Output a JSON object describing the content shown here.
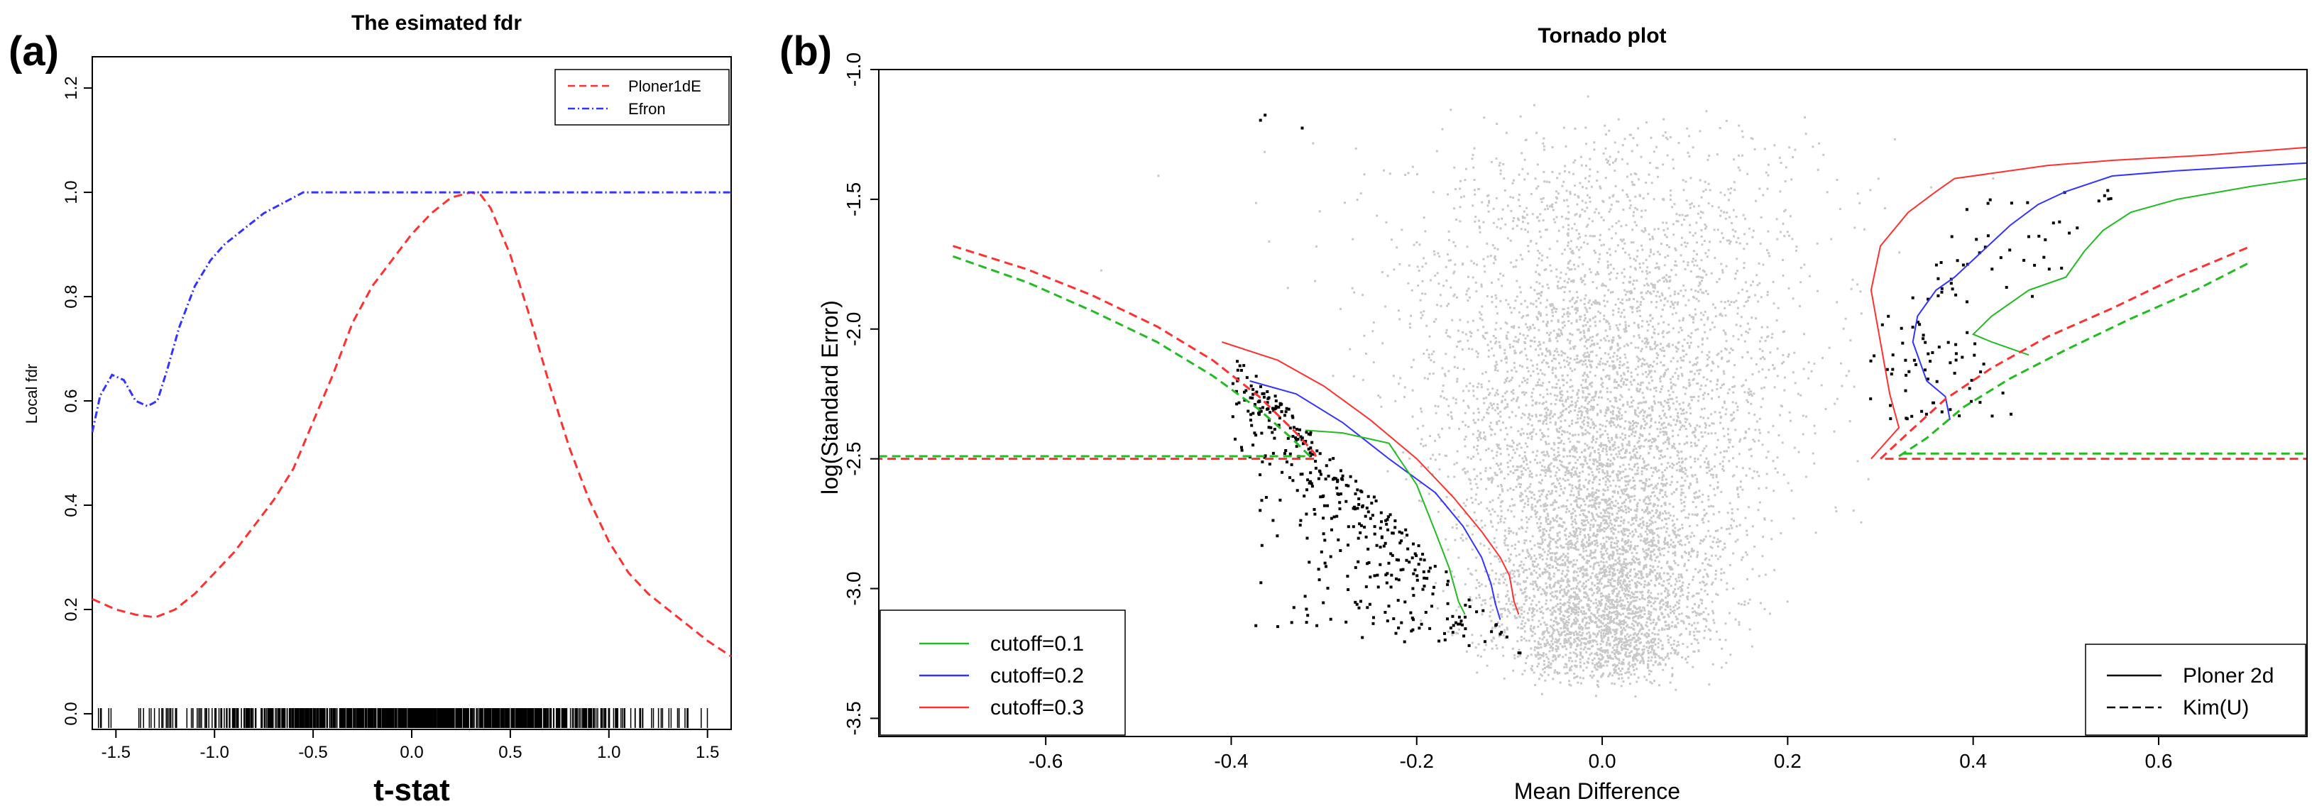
{
  "panels": {
    "a": {
      "label": "(a)"
    },
    "b": {
      "label": "(b)"
    }
  },
  "colors": {
    "ploner": "#ff3030",
    "efron": "#3333ff",
    "green": "#22bb22",
    "blue": "#3333ff",
    "red": "#ff3030",
    "grey_points": "#c8c8c8",
    "black_points": "#000000"
  },
  "chart_data": [
    {
      "type": "line",
      "title": "The esimated fdr",
      "xlabel": "t-stat",
      "ylabel": "Local fdr",
      "xlim": [
        -1.62,
        1.62
      ],
      "ylim": [
        -0.03,
        1.26
      ],
      "xticks": [
        -1.5,
        -1.0,
        -0.5,
        0.0,
        0.5,
        1.0,
        1.5
      ],
      "xtick_labels": [
        "-1.5",
        "-1.0",
        "-0.5",
        "0.0",
        "0.5",
        "1.0",
        "1.5"
      ],
      "yticks": [
        0.0,
        0.2,
        0.4,
        0.6,
        0.8,
        1.0,
        1.2
      ],
      "ytick_labels": [
        "0.0",
        "0.2",
        "0.4",
        "0.6",
        "0.8",
        "1.0",
        "1.2"
      ],
      "legend": {
        "position": "top-right",
        "entries": [
          "Ploner1dE",
          "Efron"
        ]
      },
      "rug": true,
      "series": [
        {
          "name": "Ploner1dE",
          "style": "dashed",
          "x": [
            -1.62,
            -1.5,
            -1.4,
            -1.3,
            -1.2,
            -1.1,
            -1.0,
            -0.9,
            -0.8,
            -0.7,
            -0.6,
            -0.5,
            -0.4,
            -0.3,
            -0.2,
            -0.1,
            0.0,
            0.1,
            0.2,
            0.3,
            0.35,
            0.4,
            0.5,
            0.6,
            0.7,
            0.8,
            0.9,
            1.0,
            1.1,
            1.2,
            1.3,
            1.4,
            1.5,
            1.62
          ],
          "y": [
            0.22,
            0.2,
            0.19,
            0.185,
            0.2,
            0.23,
            0.27,
            0.31,
            0.36,
            0.41,
            0.47,
            0.56,
            0.65,
            0.75,
            0.82,
            0.87,
            0.92,
            0.96,
            0.99,
            1.0,
            0.995,
            0.97,
            0.88,
            0.76,
            0.63,
            0.51,
            0.41,
            0.33,
            0.27,
            0.23,
            0.2,
            0.17,
            0.14,
            0.11
          ]
        },
        {
          "name": "Efron",
          "style": "dotdash",
          "x": [
            -1.62,
            -1.58,
            -1.52,
            -1.46,
            -1.4,
            -1.34,
            -1.29,
            -1.24,
            -1.18,
            -1.1,
            -1.02,
            -0.95,
            -0.85,
            -0.75,
            -0.65,
            -0.55,
            -0.5,
            0.0,
            0.5,
            1.0,
            1.62
          ],
          "y": [
            0.54,
            0.61,
            0.65,
            0.64,
            0.6,
            0.59,
            0.6,
            0.66,
            0.74,
            0.82,
            0.87,
            0.9,
            0.93,
            0.96,
            0.98,
            1.0,
            1.0,
            1.0,
            1.0,
            1.0,
            1.0
          ]
        }
      ]
    },
    {
      "type": "scatter",
      "title": "Tornado plot",
      "xlabel": "Mean Difference",
      "ylabel": "log(Standard Error)",
      "xlim": [
        -0.78,
        0.76
      ],
      "ylim": [
        -3.57,
        -1.0
      ],
      "y_inverted": true,
      "xticks": [
        -0.6,
        -0.4,
        -0.2,
        0.0,
        0.2,
        0.4,
        0.6
      ],
      "xtick_labels": [
        "-0.6",
        "-0.4",
        "-0.2",
        "0.0",
        "0.2",
        "0.4",
        "0.6"
      ],
      "yticks": [
        -1.0,
        -1.5,
        -2.0,
        -2.5,
        -3.0,
        -3.5
      ],
      "ytick_labels": [
        "-1.0",
        "-1.5",
        "-2.0",
        "-2.5",
        "-3.0",
        "-3.5"
      ],
      "legend_cutoff": {
        "position": "bottom-left",
        "entries": [
          "cutoff=0.1",
          "cutoff=0.2",
          "cutoff=0.3"
        ]
      },
      "legend_method": {
        "position": "bottom-right",
        "entries": [
          "Ploner 2d",
          "Kim(U)"
        ]
      },
      "grey_points": {
        "count": 7000,
        "center_x": 0.0,
        "sd_x": 0.09,
        "se_range": [
          -3.3,
          -1.1
        ],
        "description": "all genes"
      },
      "black_points_left": {
        "count": 420,
        "x_range": [
          -0.4,
          -0.09
        ],
        "se_range": [
          -3.25,
          -2.15
        ]
      },
      "black_points_right": {
        "count": 110,
        "x_range": [
          0.25,
          0.56
        ],
        "se_range": [
          -2.35,
          -1.45
        ]
      },
      "extra_black_points": [
        {
          "x": -0.37,
          "y": -1.19
        },
        {
          "x": -0.365,
          "y": -1.17
        },
        {
          "x": -0.325,
          "y": -1.22
        }
      ],
      "series": [
        {
          "name": "Ploner 2d cutoff=0.3 left",
          "method": "Ploner 2d",
          "cutoff": 0.3,
          "style": "solid",
          "x": [
            -0.41,
            -0.35,
            -0.3,
            -0.25,
            -0.2,
            -0.16,
            -0.13,
            -0.11,
            -0.1,
            -0.095,
            -0.09
          ],
          "y": [
            -2.05,
            -2.12,
            -2.22,
            -2.35,
            -2.5,
            -2.65,
            -2.78,
            -2.88,
            -2.95,
            -3.05,
            -3.1
          ]
        },
        {
          "name": "Ploner 2d cutoff=0.2 left",
          "method": "Ploner 2d",
          "cutoff": 0.2,
          "style": "solid",
          "x": [
            -0.38,
            -0.33,
            -0.28,
            -0.23,
            -0.18,
            -0.15,
            -0.13,
            -0.12,
            -0.115,
            -0.11
          ],
          "y": [
            -2.2,
            -2.25,
            -2.36,
            -2.5,
            -2.63,
            -2.76,
            -2.88,
            -2.98,
            -3.06,
            -3.12
          ]
        },
        {
          "name": "Ploner 2d cutoff=0.1 left",
          "method": "Ploner 2d",
          "cutoff": 0.1,
          "style": "solid",
          "x": [
            -0.32,
            -0.28,
            -0.23,
            -0.2,
            -0.18,
            -0.165,
            -0.155,
            -0.148
          ],
          "y": [
            -2.39,
            -2.4,
            -2.44,
            -2.6,
            -2.78,
            -2.92,
            -3.05,
            -3.1
          ]
        },
        {
          "name": "Ploner 2d cutoff=0.3 right",
          "method": "Ploner 2d",
          "cutoff": 0.3,
          "style": "solid",
          "x": [
            0.29,
            0.32,
            0.31,
            0.3,
            0.29,
            0.3,
            0.33,
            0.36,
            0.38,
            0.42,
            0.48,
            0.55,
            0.65,
            0.76
          ],
          "y": [
            -2.5,
            -2.38,
            -2.25,
            -2.05,
            -1.85,
            -1.68,
            -1.55,
            -1.47,
            -1.42,
            -1.4,
            -1.37,
            -1.35,
            -1.33,
            -1.3
          ]
        },
        {
          "name": "Ploner 2d cutoff=0.2 right",
          "method": "Ploner 2d",
          "cutoff": 0.2,
          "style": "solid",
          "x": [
            0.375,
            0.37,
            0.35,
            0.335,
            0.34,
            0.36,
            0.38,
            0.41,
            0.44,
            0.47,
            0.5,
            0.55,
            0.62,
            0.76
          ],
          "y": [
            -2.35,
            -2.26,
            -2.2,
            -2.05,
            -1.95,
            -1.85,
            -1.8,
            -1.7,
            -1.6,
            -1.52,
            -1.47,
            -1.41,
            -1.39,
            -1.36
          ]
        },
        {
          "name": "Ploner 2d cutoff=0.1 right",
          "method": "Ploner 2d",
          "cutoff": 0.1,
          "style": "solid",
          "x": [
            0.46,
            0.42,
            0.4,
            0.42,
            0.46,
            0.5,
            0.52,
            0.54,
            0.57,
            0.62,
            0.7,
            0.76
          ],
          "y": [
            -2.1,
            -2.05,
            -2.02,
            -1.95,
            -1.85,
            -1.8,
            -1.7,
            -1.62,
            -1.55,
            -1.5,
            -1.45,
            -1.42
          ]
        },
        {
          "name": "Kim(U) cutoff=0.3 left",
          "method": "Kim(U)",
          "cutoff": 0.3,
          "style": "dashed",
          "x": [
            -0.7,
            -0.62,
            -0.55,
            -0.48,
            -0.42,
            -0.37,
            -0.33,
            -0.31,
            -0.308,
            -0.78
          ],
          "y": [
            -1.68,
            -1.77,
            -1.87,
            -1.99,
            -2.12,
            -2.26,
            -2.4,
            -2.48,
            -2.5,
            -2.5
          ]
        },
        {
          "name": "Kim(U) cutoff=0.1 left",
          "method": "Kim(U)",
          "cutoff": 0.1,
          "style": "dashed",
          "x": [
            -0.7,
            -0.62,
            -0.55,
            -0.48,
            -0.42,
            -0.37,
            -0.335,
            -0.318,
            -0.315,
            -0.78
          ],
          "y": [
            -1.72,
            -1.82,
            -1.93,
            -2.05,
            -2.18,
            -2.31,
            -2.42,
            -2.48,
            -2.49,
            -2.49
          ]
        },
        {
          "name": "Kim(U) cutoff=0.3 right",
          "method": "Kim(U)",
          "cutoff": 0.3,
          "style": "dashed",
          "x": [
            0.3,
            0.33,
            0.37,
            0.42,
            0.48,
            0.55,
            0.62,
            0.7
          ],
          "y": [
            -2.5,
            -2.4,
            -2.27,
            -2.15,
            -2.03,
            -1.92,
            -1.8,
            -1.68
          ]
        },
        {
          "name": "Kim(U) cutoff=0.1 right",
          "method": "Kim(U)",
          "cutoff": 0.1,
          "style": "dashed",
          "x": [
            0.32,
            0.35,
            0.39,
            0.44,
            0.5,
            0.57,
            0.64,
            0.7
          ],
          "y": [
            -2.49,
            -2.42,
            -2.3,
            -2.19,
            -2.08,
            -1.96,
            -1.85,
            -1.74
          ]
        },
        {
          "name": "Kim(U) cutoff=0.3 horizontal",
          "method": "Kim(U)",
          "cutoff": 0.3,
          "style": "dashed",
          "x": [
            0.305,
            0.76
          ],
          "y": [
            -2.5,
            -2.5
          ]
        },
        {
          "name": "Kim(U) cutoff=0.1 horizontal",
          "method": "Kim(U)",
          "cutoff": 0.1,
          "style": "dashed",
          "x": [
            0.325,
            0.76
          ],
          "y": [
            -2.48,
            -2.48
          ]
        }
      ]
    }
  ]
}
